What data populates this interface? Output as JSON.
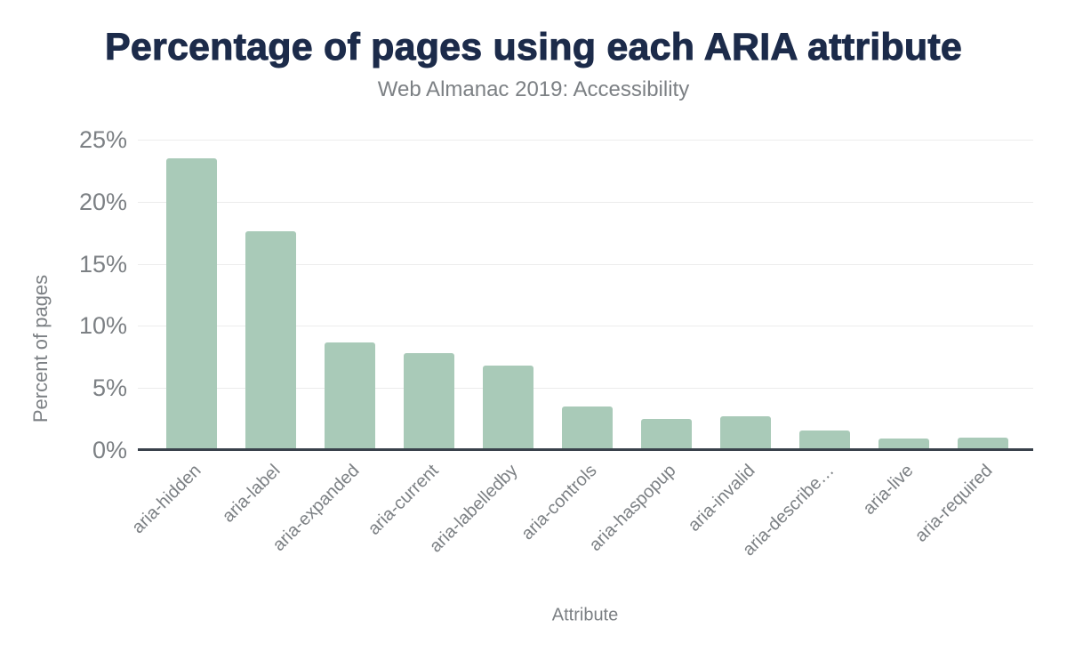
{
  "chart_data": {
    "type": "bar",
    "title": "Percentage of pages using each ARIA attribute",
    "subtitle": "Web Almanac 2019: Accessibility",
    "xlabel": "Attribute",
    "ylabel": "Percent of pages",
    "categories": [
      "aria-hidden",
      "aria-label",
      "aria-expanded",
      "aria-current",
      "aria-labelledby",
      "aria-controls",
      "aria-haspopup",
      "aria-invalid",
      "aria-describe…",
      "aria-live",
      "aria-required"
    ],
    "values": [
      23.5,
      17.6,
      8.7,
      7.8,
      6.8,
      3.5,
      2.5,
      2.7,
      1.6,
      0.9,
      1.0
    ],
    "ylim": [
      0,
      25
    ],
    "ytick_values": [
      0,
      5,
      10,
      15,
      20,
      25
    ],
    "ytick_labels": [
      "0%",
      "5%",
      "10%",
      "15%",
      "20%",
      "25%"
    ],
    "grid": true,
    "legend": false,
    "colors": {
      "bar": "#a9cab8",
      "title": "#1c2b4a",
      "axis_text": "#7c8084",
      "gridline": "#ececec",
      "axis_line": "#39414b",
      "background": "#ffffff"
    }
  }
}
